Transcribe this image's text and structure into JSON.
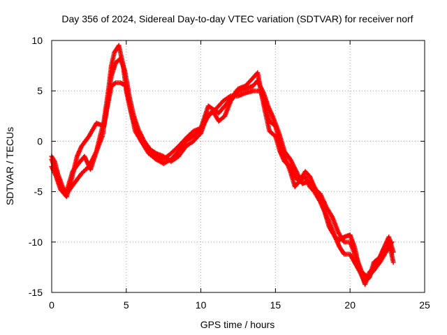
{
  "chart_data": {
    "type": "scatter",
    "title": "Day 356 of 2024, Sidereal Day-to-day VTEC variation (SDTVAR) for receiver norf",
    "xlabel": "GPS time / hours",
    "ylabel": "SDTVAR / TECUs",
    "xlim": [
      0,
      25
    ],
    "ylim": [
      -15,
      10
    ],
    "xticks": [
      0,
      5,
      10,
      15,
      20,
      25
    ],
    "yticks": [
      -15,
      -10,
      -5,
      0,
      5,
      10
    ],
    "xtick_labels": [
      "0",
      "5",
      "10",
      "15",
      "20",
      "25"
    ],
    "ytick_labels": [
      "-15",
      "-10",
      "-5",
      "0",
      "5",
      "10"
    ],
    "grid": true,
    "marker": "+",
    "color": "#ff0000",
    "series": [
      {
        "name": "trace-1",
        "x": [
          0.0,
          0.2,
          0.4,
          0.6,
          0.8,
          1.0,
          1.3,
          1.6,
          2.0,
          2.5,
          3.0,
          3.5,
          3.8,
          4.0,
          4.2,
          4.5,
          4.8,
          5.0,
          5.3,
          5.6,
          6.0,
          6.5,
          7.0,
          7.5,
          8.0,
          8.5,
          9.0,
          9.5,
          10.0,
          10.5,
          10.8,
          11.2,
          11.6,
          12.0,
          12.5,
          13.0,
          13.5,
          13.8,
          14.0,
          14.3,
          14.6,
          15.0,
          15.3,
          15.6,
          16.0,
          16.3,
          16.6,
          17.0,
          17.3,
          17.6,
          18.0,
          18.3,
          18.6,
          19.0,
          19.3,
          19.6,
          20.0,
          20.3,
          20.6,
          21.0,
          21.3,
          21.6,
          22.0,
          22.3,
          22.6,
          22.9
        ],
        "y": [
          -1.5,
          -2.0,
          -3.2,
          -4.0,
          -4.8,
          -5.2,
          -4.6,
          -4.0,
          -3.2,
          -2.5,
          -1.0,
          2.0,
          5.0,
          7.5,
          8.8,
          9.5,
          7.5,
          5.0,
          3.0,
          1.5,
          0.3,
          -0.8,
          -1.5,
          -1.8,
          -1.2,
          -0.5,
          0.3,
          1.0,
          1.3,
          3.5,
          3.2,
          2.8,
          3.5,
          4.2,
          5.2,
          5.5,
          6.3,
          6.8,
          5.2,
          3.0,
          1.0,
          0.5,
          -1.0,
          -2.0,
          -2.5,
          -3.5,
          -4.0,
          -3.5,
          -4.5,
          -5.0,
          -6.0,
          -7.0,
          -8.0,
          -9.5,
          -10.5,
          -11.2,
          -11.2,
          -12.0,
          -12.8,
          -14.0,
          -13.5,
          -12.0,
          -11.5,
          -10.5,
          -10.0,
          -12.0
        ]
      },
      {
        "name": "trace-2",
        "x": [
          0.0,
          0.3,
          0.6,
          1.0,
          1.3,
          1.7,
          2.0,
          2.5,
          3.0,
          3.5,
          3.8,
          4.0,
          4.3,
          4.6,
          5.0,
          5.3,
          5.6,
          6.0,
          6.5,
          7.0,
          7.5,
          8.0,
          8.5,
          9.0,
          9.5,
          10.0,
          10.5,
          11.0,
          11.5,
          12.0,
          12.5,
          13.0,
          13.5,
          14.0,
          14.3,
          14.6,
          15.0,
          15.3,
          15.6,
          16.0,
          16.3,
          16.6,
          17.0,
          17.3,
          17.6,
          18.0,
          18.3,
          18.6,
          19.0,
          19.3,
          19.6,
          20.0,
          20.3,
          20.6,
          21.0,
          21.3,
          21.6,
          22.0,
          22.3,
          22.6,
          22.9
        ],
        "y": [
          -2.5,
          -3.5,
          -4.8,
          -5.5,
          -4.0,
          -1.5,
          -0.5,
          0.5,
          1.8,
          1.5,
          4.0,
          5.5,
          5.8,
          5.8,
          5.5,
          3.0,
          1.0,
          0.0,
          -1.2,
          -1.8,
          -2.2,
          -1.8,
          -1.0,
          0.0,
          0.5,
          1.2,
          2.5,
          3.2,
          4.0,
          4.5,
          4.5,
          4.8,
          5.0,
          5.0,
          3.5,
          2.0,
          1.5,
          0.0,
          -1.5,
          -3.0,
          -4.5,
          -4.0,
          -3.0,
          -3.5,
          -4.5,
          -5.5,
          -7.0,
          -8.5,
          -9.5,
          -9.8,
          -9.5,
          -9.3,
          -10.5,
          -12.5,
          -14.2,
          -13.0,
          -12.5,
          -11.5,
          -10.5,
          -9.5,
          -11.0
        ]
      },
      {
        "name": "trace-3",
        "x": [
          0.0,
          0.3,
          0.6,
          1.0,
          1.4,
          1.8,
          2.2,
          2.6,
          3.0,
          3.4,
          3.7,
          4.0,
          4.3,
          4.6,
          4.9,
          5.2,
          5.5,
          5.8,
          6.2,
          6.6,
          7.0,
          7.5,
          8.0,
          8.5,
          9.0,
          9.5,
          10.0,
          10.4,
          10.8,
          11.2,
          11.6,
          12.0,
          12.5,
          13.0,
          13.5,
          13.8,
          14.2,
          14.5,
          14.8,
          15.2,
          15.6,
          16.0,
          16.4,
          16.8,
          17.2,
          17.6,
          18.0,
          18.4,
          18.8,
          19.2,
          19.6,
          20.0,
          20.4,
          20.8,
          21.2,
          21.6,
          22.0,
          22.4,
          22.8
        ],
        "y": [
          -1.8,
          -3.0,
          -4.5,
          -5.0,
          -3.0,
          -2.2,
          -1.5,
          -2.8,
          -1.0,
          0.5,
          3.5,
          6.5,
          7.8,
          8.2,
          7.0,
          4.5,
          2.5,
          1.2,
          0.0,
          -0.8,
          -1.2,
          -1.5,
          -2.0,
          -1.5,
          -0.5,
          0.0,
          0.8,
          2.5,
          3.0,
          2.0,
          2.5,
          4.0,
          5.0,
          5.2,
          5.5,
          6.0,
          4.8,
          3.5,
          2.5,
          1.0,
          -1.0,
          -1.8,
          -3.0,
          -4.2,
          -4.0,
          -4.8,
          -5.2,
          -6.5,
          -7.5,
          -9.0,
          -10.0,
          -10.0,
          -11.5,
          -13.0,
          -13.5,
          -12.8,
          -12.0,
          -11.0,
          -10.0
        ]
      }
    ]
  }
}
